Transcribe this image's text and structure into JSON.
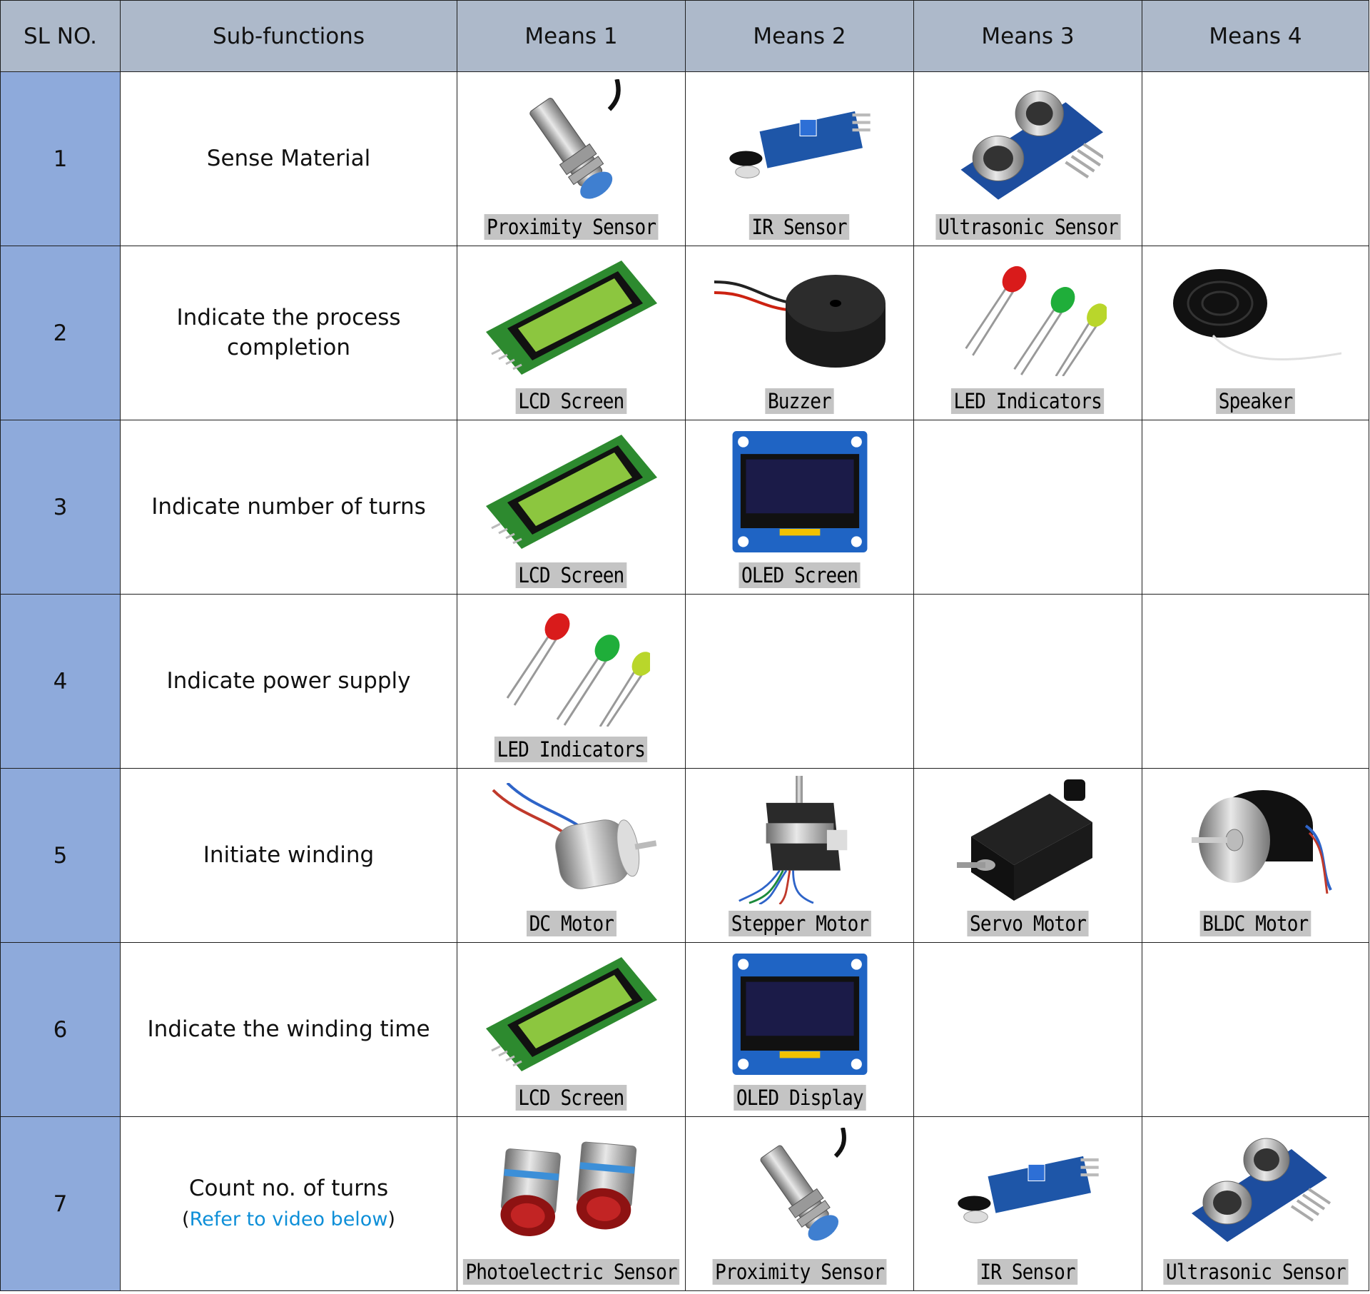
{
  "header": {
    "sl_no": "SL NO.",
    "sub_functions": "Sub-functions",
    "means_1": "Means 1",
    "means_2": "Means 2",
    "means_3": "Means 3",
    "means_4": "Means 4"
  },
  "rows": [
    {
      "sl": "1",
      "function": "Sense Material",
      "means": [
        {
          "label": "Proximity Sensor",
          "icon": "proximity-sensor-icon"
        },
        {
          "label": "IR Sensor",
          "icon": "ir-sensor-icon"
        },
        {
          "label": "Ultrasonic Sensor",
          "icon": "ultrasonic-sensor-icon"
        },
        null
      ]
    },
    {
      "sl": "2",
      "function_line1": "Indicate the process",
      "function_line2": "completion",
      "means": [
        {
          "label": "LCD Screen",
          "icon": "lcd-screen-icon"
        },
        {
          "label": "Buzzer",
          "icon": "buzzer-icon"
        },
        {
          "label": "LED Indicators",
          "icon": "led-indicators-icon"
        },
        {
          "label": "Speaker",
          "icon": "speaker-icon"
        }
      ]
    },
    {
      "sl": "3",
      "function": "Indicate number of turns",
      "means": [
        {
          "label": "LCD Screen",
          "icon": "lcd-screen-icon"
        },
        {
          "label": "OLED Screen",
          "icon": "oled-screen-icon"
        },
        null,
        null
      ]
    },
    {
      "sl": "4",
      "function": "Indicate power supply",
      "means": [
        {
          "label": "LED Indicators",
          "icon": "led-indicators-icon"
        },
        null,
        null,
        null
      ]
    },
    {
      "sl": "5",
      "function": "Initiate winding",
      "means": [
        {
          "label": "DC Motor",
          "icon": "dc-motor-icon"
        },
        {
          "label": "Stepper Motor",
          "icon": "stepper-motor-icon"
        },
        {
          "label": "Servo Motor",
          "icon": "servo-motor-icon"
        },
        {
          "label": "BLDC Motor",
          "icon": "bldc-motor-icon"
        }
      ]
    },
    {
      "sl": "6",
      "function": "Indicate the winding time",
      "means": [
        {
          "label": "LCD Screen",
          "icon": "lcd-screen-icon"
        },
        {
          "label": "OLED Display",
          "icon": "oled-display-icon"
        },
        null,
        null
      ]
    },
    {
      "sl": "7",
      "function": "Count no. of turns",
      "note_open": "(",
      "note_link": "Refer to video below",
      "note_close": ")",
      "means": [
        {
          "label": "Photoelectric Sensor",
          "icon": "photoelectric-sensor-icon"
        },
        {
          "label": "Proximity Sensor",
          "icon": "proximity-sensor-icon"
        },
        {
          "label": "IR Sensor",
          "icon": "ir-sensor-icon"
        },
        {
          "label": "Ultrasonic Sensor",
          "icon": "ultrasonic-sensor-icon"
        }
      ]
    }
  ],
  "colors": {
    "header_bg": "#adb9ca",
    "sl_column_bg": "#8eaadb",
    "caption_bg": "#c4c4c4",
    "link": "#0e8fd8"
  }
}
